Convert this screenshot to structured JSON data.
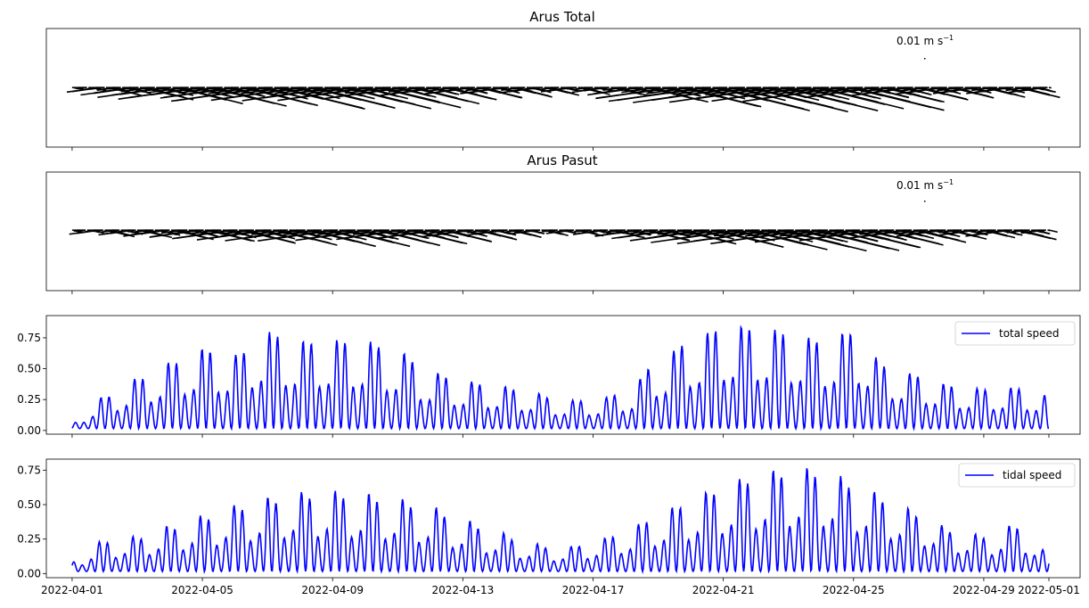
{
  "chart_data": [
    {
      "type": "quiver",
      "title": "Arus Total",
      "quiver_key": {
        "value": "0.01",
        "unit": "m s",
        "exponent": "−1"
      },
      "x_range": [
        "2022-04-01",
        "2022-05-01"
      ],
      "note": "stick plot of total current vectors; amplitude follows total speed",
      "sticks": {
        "source": "total speed",
        "angle_pattern": "mostly southeast/west, varying"
      }
    },
    {
      "type": "quiver",
      "title": "Arus Pasut",
      "quiver_key": {
        "value": "0.01",
        "unit": "m s",
        "exponent": "−1"
      },
      "x_range": [
        "2022-04-01",
        "2022-05-01"
      ],
      "sticks": {
        "source": "tidal speed",
        "angle_pattern": "oscillating northwest/southeast"
      }
    },
    {
      "type": "line",
      "series": [
        {
          "name": "total speed",
          "color": "#0000ff"
        }
      ],
      "ylim": [
        -0.03,
        0.93
      ],
      "yticks": [
        "0.00",
        "0.25",
        "0.50",
        "0.75"
      ],
      "legend": "top-right",
      "peaks": [
        [
          "2022-04-01",
          0.05
        ],
        [
          "2022-04-02",
          0.28
        ],
        [
          "2022-04-03",
          0.44
        ],
        [
          "2022-04-04",
          0.58
        ],
        [
          "2022-04-05",
          0.7
        ],
        [
          "2022-04-06",
          0.65
        ],
        [
          "2022-04-07",
          0.85
        ],
        [
          "2022-04-08",
          0.77
        ],
        [
          "2022-04-09",
          0.78
        ],
        [
          "2022-04-10",
          0.77
        ],
        [
          "2022-04-11",
          0.68
        ],
        [
          "2022-04-12",
          0.5
        ],
        [
          "2022-04-13",
          0.42
        ],
        [
          "2022-04-14",
          0.38
        ],
        [
          "2022-04-15",
          0.33
        ],
        [
          "2022-04-16",
          0.25
        ],
        [
          "2022-04-17",
          0.25
        ],
        [
          "2022-04-18",
          0.32
        ],
        [
          "2022-04-19",
          0.6
        ],
        [
          "2022-04-20",
          0.78
        ],
        [
          "2022-04-21",
          0.9
        ],
        [
          "2022-04-22",
          0.9
        ],
        [
          "2022-04-23",
          0.85
        ],
        [
          "2022-04-24",
          0.78
        ],
        [
          "2022-04-25",
          0.86
        ],
        [
          "2022-04-26",
          0.56
        ],
        [
          "2022-04-27",
          0.47
        ],
        [
          "2022-04-28",
          0.38
        ],
        [
          "2022-04-29",
          0.35
        ],
        [
          "2022-04-30",
          0.36
        ],
        [
          "2022-05-01",
          0.29
        ]
      ]
    },
    {
      "type": "line",
      "series": [
        {
          "name": "tidal speed",
          "color": "#0000ff"
        }
      ],
      "ylim": [
        -0.03,
        0.83
      ],
      "yticks": [
        "0.00",
        "0.25",
        "0.50",
        "0.75"
      ],
      "legend": "top-right",
      "peaks": [
        [
          "2022-04-01",
          0.08
        ],
        [
          "2022-04-02",
          0.24
        ],
        [
          "2022-04-03",
          0.27
        ],
        [
          "2022-04-04",
          0.35
        ],
        [
          "2022-04-05",
          0.43
        ],
        [
          "2022-04-06",
          0.51
        ],
        [
          "2022-04-07",
          0.57
        ],
        [
          "2022-04-08",
          0.61
        ],
        [
          "2022-04-09",
          0.62
        ],
        [
          "2022-04-10",
          0.6
        ],
        [
          "2022-04-11",
          0.56
        ],
        [
          "2022-04-12",
          0.5
        ],
        [
          "2022-04-13",
          0.4
        ],
        [
          "2022-04-14",
          0.31
        ],
        [
          "2022-04-15",
          0.22
        ],
        [
          "2022-04-16",
          0.18
        ],
        [
          "2022-04-17",
          0.23
        ],
        [
          "2022-04-18",
          0.32
        ],
        [
          "2022-04-19",
          0.45
        ],
        [
          "2022-04-20",
          0.56
        ],
        [
          "2022-04-21",
          0.67
        ],
        [
          "2022-04-22",
          0.75
        ],
        [
          "2022-04-23",
          0.8
        ],
        [
          "2022-04-24",
          0.8
        ],
        [
          "2022-04-25",
          0.7
        ],
        [
          "2022-04-26",
          0.58
        ],
        [
          "2022-04-27",
          0.46
        ],
        [
          "2022-04-28",
          0.33
        ],
        [
          "2022-04-29",
          0.28
        ],
        [
          "2022-04-30",
          0.36
        ],
        [
          "2022-05-01",
          0.15
        ]
      ]
    }
  ],
  "xaxis": {
    "ticks": [
      "2022-04-01",
      "2022-04-05",
      "2022-04-09",
      "2022-04-13",
      "2022-04-17",
      "2022-04-21",
      "2022-04-25",
      "2022-04-29",
      "2022-05-01"
    ],
    "range": [
      "2022-03-31T05:00",
      "2022-05-01T23:00"
    ]
  },
  "colors": {
    "line": "#0000ff",
    "quiver": "#000000",
    "axes": "#000000"
  }
}
